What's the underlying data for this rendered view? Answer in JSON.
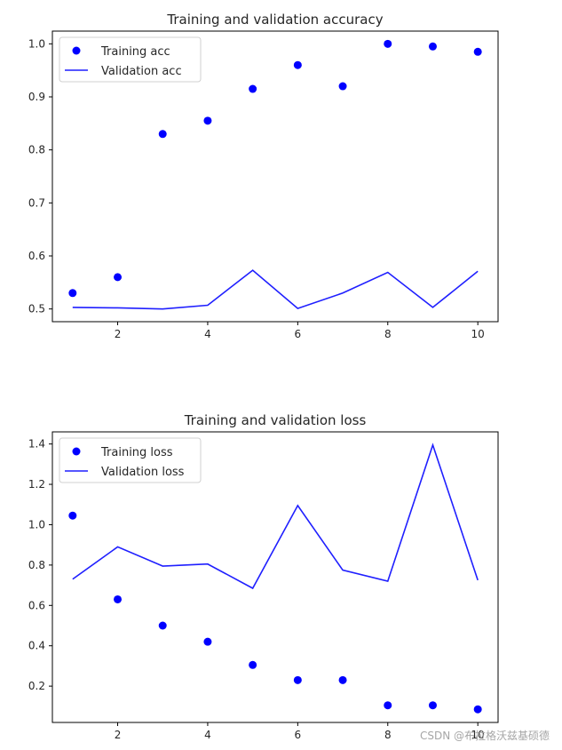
{
  "chart_data": [
    {
      "type": "line",
      "title": "Training and validation accuracy",
      "x": [
        1,
        2,
        3,
        4,
        5,
        6,
        7,
        8,
        9,
        10
      ],
      "xticks": [
        2,
        4,
        6,
        8,
        10
      ],
      "yticks": [
        0.5,
        0.6,
        0.7,
        0.8,
        0.9,
        1.0
      ],
      "ytick_labels": [
        "0.5",
        "0.6",
        "0.7",
        "0.8",
        "0.9",
        "1.0"
      ],
      "xlim": [
        0.55,
        10.45
      ],
      "ylim": [
        0.476,
        1.024
      ],
      "legend": "top-left",
      "grid": false,
      "series": [
        {
          "name": "Training acc",
          "style": "points",
          "color": "#0000ff",
          "values": [
            0.53,
            0.56,
            0.83,
            0.855,
            0.915,
            0.96,
            0.92,
            1.0,
            0.995,
            0.985
          ]
        },
        {
          "name": "Validation acc",
          "style": "line",
          "color": "#1f1fff",
          "values": [
            0.503,
            0.502,
            0.5,
            0.507,
            0.573,
            0.501,
            0.53,
            0.569,
            0.503,
            0.571
          ]
        }
      ]
    },
    {
      "type": "line",
      "title": "Training and validation loss",
      "x": [
        1,
        2,
        3,
        4,
        5,
        6,
        7,
        8,
        9,
        10
      ],
      "xticks": [
        2,
        4,
        6,
        8,
        10
      ],
      "yticks": [
        0.2,
        0.4,
        0.6,
        0.8,
        1.0,
        1.2,
        1.4
      ],
      "ytick_labels": [
        "0.2",
        "0.4",
        "0.6",
        "0.8",
        "1.0",
        "1.2",
        "1.4"
      ],
      "xlim": [
        0.55,
        10.45
      ],
      "ylim": [
        0.02,
        1.46
      ],
      "legend": "top-left",
      "grid": false,
      "series": [
        {
          "name": "Training loss",
          "style": "points",
          "color": "#0000ff",
          "values": [
            1.045,
            0.63,
            0.5,
            0.42,
            0.305,
            0.23,
            0.23,
            0.105,
            0.105,
            0.085
          ]
        },
        {
          "name": "Validation loss",
          "style": "line",
          "color": "#1f1fff",
          "values": [
            0.73,
            0.89,
            0.795,
            0.805,
            0.685,
            1.095,
            0.775,
            0.72,
            1.395,
            0.725
          ]
        }
      ]
    }
  ],
  "watermark": "CSDN @布拉格沃兹基硕德"
}
